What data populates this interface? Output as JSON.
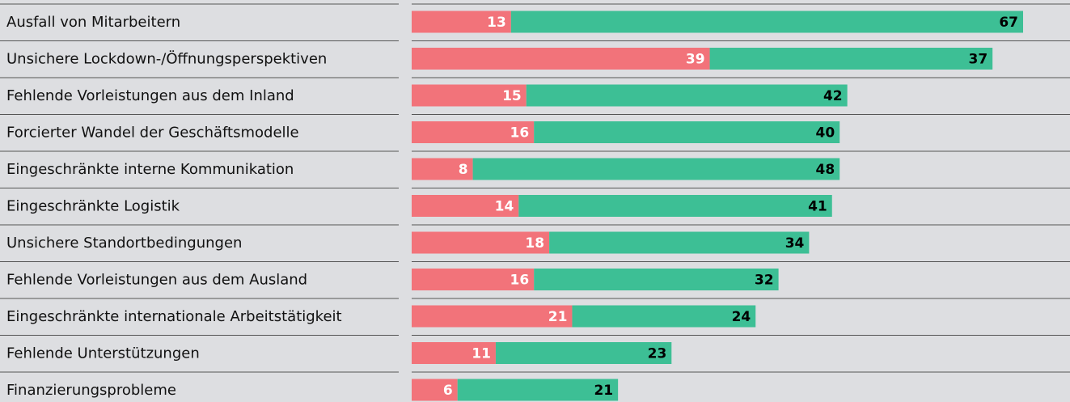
{
  "chart_data": {
    "type": "stacked-bar-horizontal",
    "categories": [
      "Ausfall von Mitarbeitern",
      "Unsichere Lockdown-/Öffnungsperspektiven",
      "Fehlende Vorleistungen aus dem Inland",
      "Forcierter Wandel der Geschäftsmodelle",
      "Eingeschränkte interne Kommunikation",
      "Eingeschränkte Logistik",
      "Unsichere Standortbedingungen",
      "Fehlende Vorleistungen aus dem Ausland",
      "Eingeschränkte internationale Arbeitstätigkeit",
      "Fehlende Unterstützungen",
      "Finanzierungsprobleme"
    ],
    "series": [
      {
        "color": "#f2737a",
        "values": [
          13,
          39,
          15,
          16,
          8,
          14,
          18,
          16,
          21,
          11,
          6
        ]
      },
      {
        "color": "#3dbf95",
        "values": [
          67,
          37,
          42,
          40,
          48,
          41,
          34,
          32,
          24,
          23,
          21
        ]
      }
    ]
  }
}
